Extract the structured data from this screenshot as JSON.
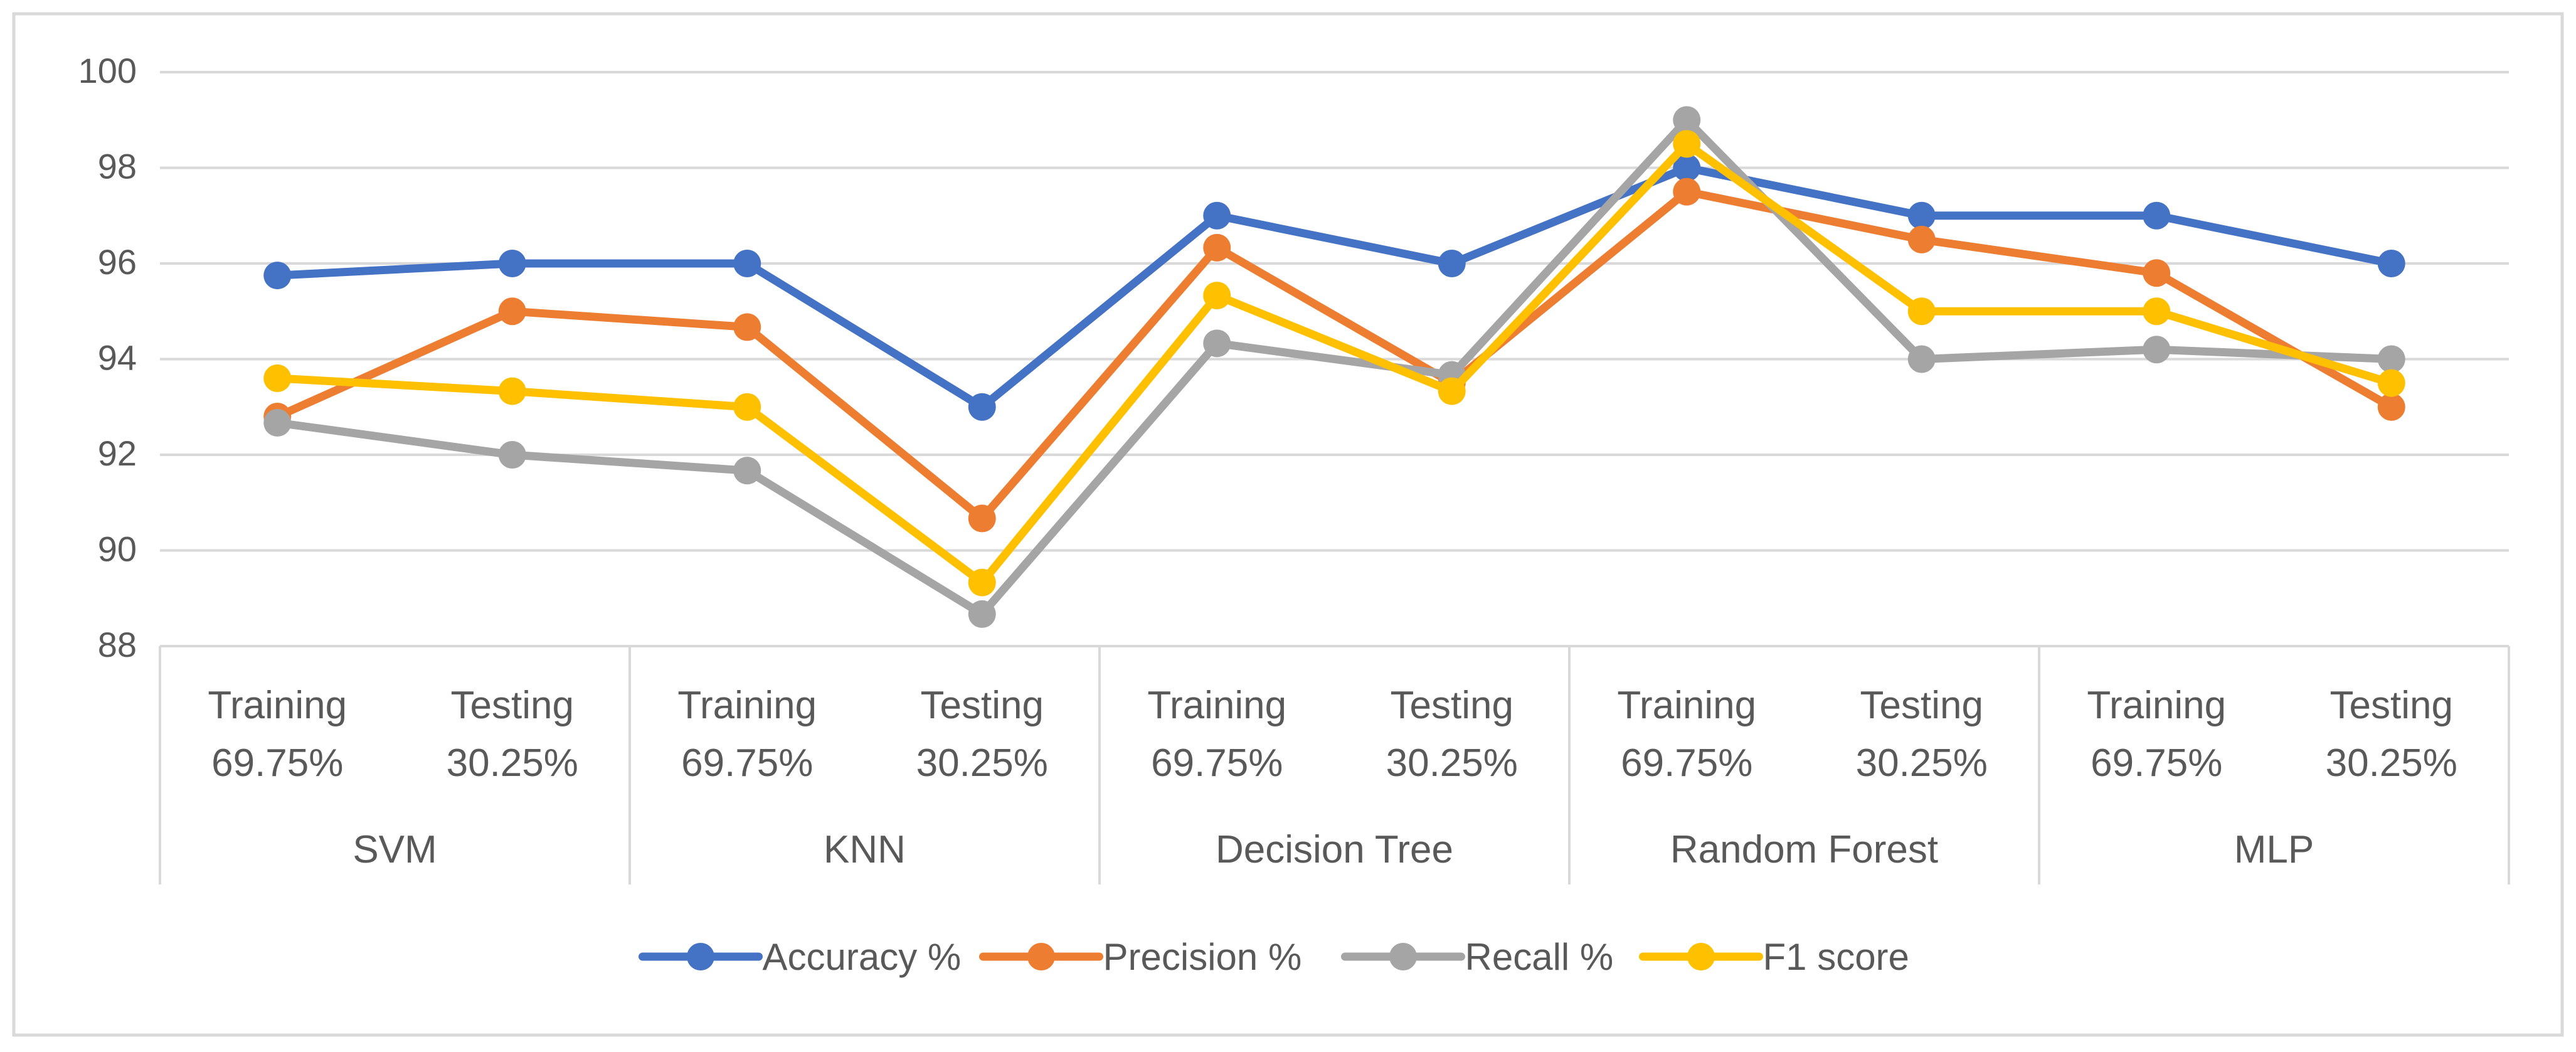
{
  "chart_data": {
    "type": "line",
    "title": "",
    "xlabel": "",
    "ylabel": "",
    "ylim": [
      88,
      100
    ],
    "y_ticks": [
      88,
      90,
      92,
      94,
      96,
      98,
      100
    ],
    "grid": true,
    "legend_position": "bottom",
    "groups": [
      {
        "name": "SVM",
        "phases": [
          "Training",
          "Testing"
        ],
        "ratios": [
          "69.75%",
          "30.25%"
        ]
      },
      {
        "name": "KNN",
        "phases": [
          "Training",
          "Testing"
        ],
        "ratios": [
          "69.75%",
          "30.25%"
        ]
      },
      {
        "name": "Decision Tree",
        "phases": [
          "Training",
          "Testing"
        ],
        "ratios": [
          "69.75%",
          "30.25%"
        ]
      },
      {
        "name": "Random Forest",
        "phases": [
          "Training",
          "Testing"
        ],
        "ratios": [
          "69.75%",
          "30.25%"
        ]
      },
      {
        "name": "MLP",
        "phases": [
          "Training",
          "Testing"
        ],
        "ratios": [
          "69.75%",
          "30.25%"
        ]
      }
    ],
    "series": [
      {
        "name": "Accuracy %",
        "color": "#4472C4",
        "values": [
          95.75,
          96,
          96,
          93,
          97,
          96,
          98,
          97,
          97,
          96
        ]
      },
      {
        "name": "Precision %",
        "color": "#ED7D31",
        "values": [
          92.8,
          95,
          94.67,
          90.67,
          96.33,
          93.5,
          97.5,
          96.5,
          95.8,
          93
        ]
      },
      {
        "name": "Recall %",
        "color": "#A5A5A5",
        "values": [
          92.67,
          92,
          91.67,
          88.67,
          94.33,
          93.67,
          99,
          94,
          94.2,
          94
        ]
      },
      {
        "name": "F1 score",
        "color": "#FFC000",
        "values": [
          93.6,
          93.33,
          93,
          89.33,
          95.33,
          93.33,
          98.5,
          95,
          95,
          93.5
        ]
      }
    ]
  }
}
